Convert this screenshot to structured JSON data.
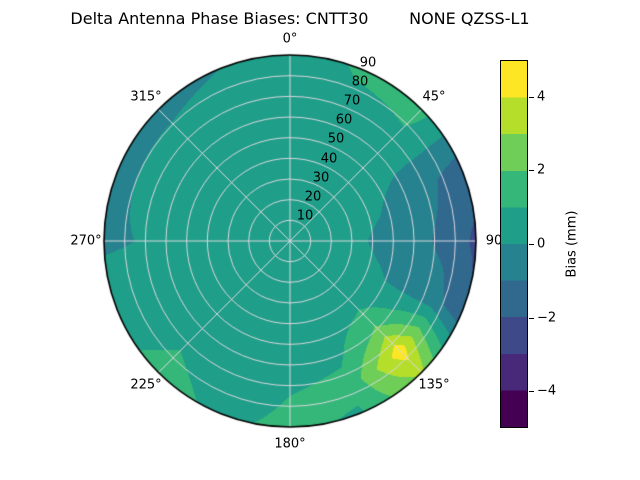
{
  "title": "Delta Antenna Phase Biases: CNTT30        NONE QZSS-L1",
  "chart_data": {
    "type": "heatmap",
    "projection": "polar",
    "theta_zero_location": "top",
    "theta_direction": "clockwise",
    "title": "Delta Antenna Phase Biases: CNTT30        NONE QZSS-L1",
    "theta_tick_angles_deg": [
      0,
      45,
      90,
      135,
      180,
      225,
      270,
      315
    ],
    "theta_tick_labels": [
      "0°",
      "45°",
      "90",
      "135°",
      "180°",
      "225°",
      "270°",
      "315°"
    ],
    "r_tick_values": [
      10,
      20,
      30,
      40,
      50,
      60,
      70,
      80,
      90
    ],
    "r_tick_labels": [
      "10",
      "20",
      "30",
      "40",
      "50",
      "60",
      "70",
      "80",
      "90"
    ],
    "r_max": 90,
    "grid": true,
    "levels": [
      -5,
      -4,
      -3,
      -2,
      -1,
      0,
      1,
      2,
      3,
      4,
      5
    ],
    "colors": [
      "#440154",
      "#482878",
      "#3e4989",
      "#31688e",
      "#26828e",
      "#1f9e89",
      "#35b779",
      "#6ece58",
      "#b5de2b",
      "#fde725"
    ],
    "azimuth_deg": [
      0,
      22.5,
      45,
      67.5,
      90,
      112.5,
      135,
      157.5,
      180,
      202.5,
      225,
      247.5,
      270,
      292.5,
      315,
      337.5,
      360
    ],
    "radius": [
      0,
      15,
      30,
      45,
      60,
      75,
      90
    ],
    "values": [
      [
        0.5,
        0.5,
        0.6,
        0.6,
        0.5,
        0.3,
        0.2
      ],
      [
        0.5,
        0.5,
        0.6,
        0.5,
        0.4,
        0.7,
        1.2
      ],
      [
        0.5,
        0.5,
        0.5,
        0.4,
        0.4,
        0.9,
        1.4
      ],
      [
        0.5,
        0.4,
        0.3,
        0.1,
        -0.3,
        -0.9,
        -1.6
      ],
      [
        0.5,
        0.4,
        0.2,
        -0.2,
        -0.6,
        -1.3,
        -2.2
      ],
      [
        0.5,
        0.4,
        0.3,
        0.1,
        -0.2,
        -0.6,
        -1.8
      ],
      [
        0.5,
        0.4,
        0.4,
        0.8,
        2.2,
        4.6,
        3.2
      ],
      [
        0.5,
        0.4,
        0.4,
        0.5,
        0.8,
        1.3,
        0.9
      ],
      [
        0.5,
        0.4,
        0.4,
        0.5,
        0.7,
        1.0,
        1.2
      ],
      [
        0.5,
        0.4,
        0.4,
        0.4,
        0.5,
        0.6,
        0.8
      ],
      [
        0.5,
        0.4,
        0.4,
        0.4,
        0.6,
        1.0,
        1.4
      ],
      [
        0.5,
        0.4,
        0.3,
        0.3,
        0.3,
        0.3,
        0.4
      ],
      [
        0.5,
        0.4,
        0.3,
        0.2,
        0.1,
        0.0,
        -0.1
      ],
      [
        0.5,
        0.5,
        0.4,
        0.3,
        0.2,
        0.1,
        -0.2
      ],
      [
        0.5,
        0.5,
        0.5,
        0.4,
        0.3,
        0.2,
        -0.3
      ],
      [
        0.5,
        0.5,
        0.5,
        0.5,
        0.4,
        0.3,
        0.0
      ],
      [
        0.5,
        0.5,
        0.6,
        0.6,
        0.5,
        0.3,
        0.2
      ]
    ],
    "colorbar": {
      "label": "Bias (mm)",
      "vmin": -5,
      "vmax": 5,
      "tick_values": [
        4,
        2,
        0,
        -2,
        -4
      ],
      "tick_labels": [
        "4",
        "2",
        "0",
        "−2",
        "−4"
      ]
    }
  }
}
